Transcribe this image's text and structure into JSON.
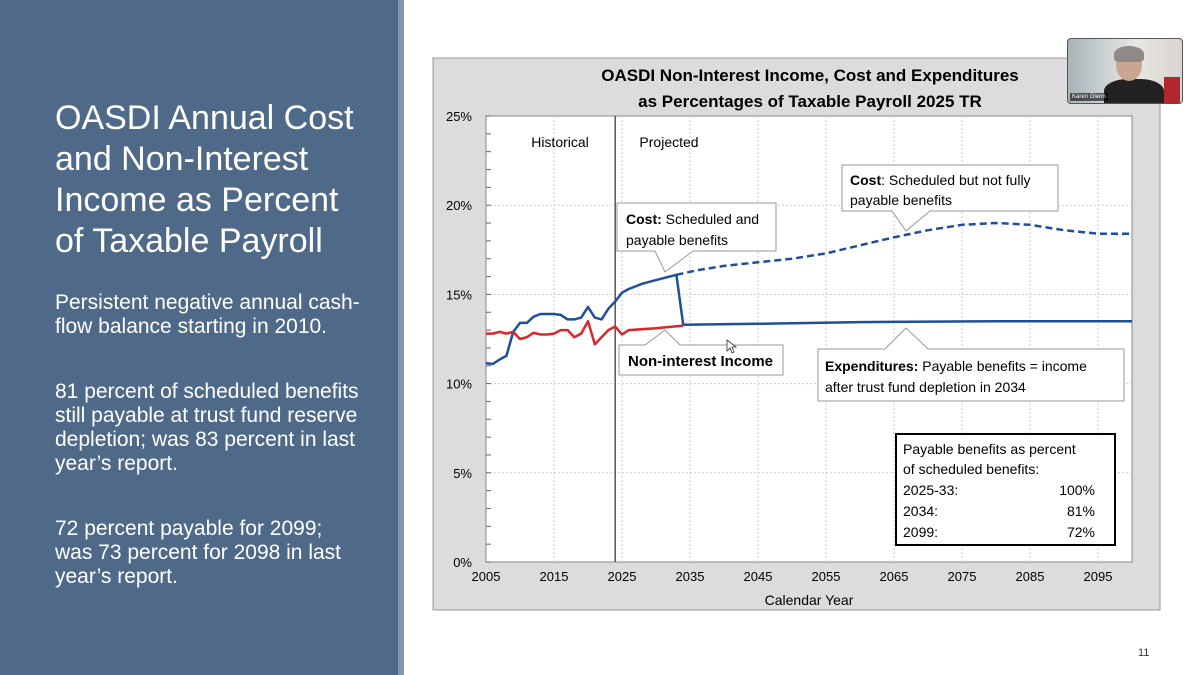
{
  "slide": {
    "title": "OASDI Annual Cost and Non-Interest Income as Percent of Taxable Payroll",
    "bullets": [
      "Persistent negative annual cash-flow balance starting in 2010.",
      "81 percent of scheduled benefits still payable at trust fund reserve depletion; was 83 percent in last year’s report.",
      "72 percent payable for 2099; was 73 percent for 2098 in last year’s report."
    ],
    "page_number": "11"
  },
  "video": {
    "participant_name": "Karen Glenn"
  },
  "colors": {
    "panel": "#4f6a89",
    "cost": "#1f4e9a",
    "income": "#d9262b"
  },
  "chart_data": {
    "type": "line",
    "title": [
      "OASDI Non-Interest Income, Cost and Expenditures",
      "as Percentages of Taxable Payroll 2025 TR"
    ],
    "xlabel": "Calendar Year",
    "ylabel": "",
    "xlim": [
      2005,
      2100
    ],
    "ylim": [
      0,
      25
    ],
    "xticks": [
      2005,
      2015,
      2025,
      2035,
      2045,
      2055,
      2065,
      2075,
      2085,
      2095
    ],
    "yticks": [
      0,
      5,
      10,
      15,
      20,
      25
    ],
    "ytick_labels": [
      "0%",
      "5%",
      "10%",
      "15%",
      "20%",
      "25%"
    ],
    "grid": true,
    "divider_year": 2024,
    "region_labels": [
      "Historical",
      "Projected"
    ],
    "series": [
      {
        "name": "Cost: Scheduled and payable benefits",
        "style": "solid",
        "color": "#1f4e9a",
        "x": [
          2005,
          2006,
          2007,
          2008,
          2009,
          2010,
          2011,
          2012,
          2013,
          2014,
          2015,
          2016,
          2017,
          2018,
          2019,
          2020,
          2021,
          2022,
          2023,
          2024,
          2025,
          2026,
          2028,
          2030,
          2032,
          2033,
          2034
        ],
        "y": [
          11.15,
          11.1,
          11.35,
          11.55,
          12.9,
          13.4,
          13.4,
          13.75,
          13.9,
          13.9,
          13.9,
          13.85,
          13.6,
          13.6,
          13.7,
          14.3,
          13.7,
          13.6,
          14.2,
          14.6,
          15.1,
          15.3,
          15.6,
          15.8,
          16.0,
          16.1,
          13.3
        ]
      },
      {
        "name": "Cost: Scheduled but not fully payable benefits",
        "style": "dashed",
        "color": "#1f4e9a",
        "x": [
          2033,
          2036,
          2040,
          2045,
          2050,
          2055,
          2060,
          2065,
          2070,
          2075,
          2080,
          2085,
          2090,
          2095,
          2100
        ],
        "y": [
          16.1,
          16.35,
          16.6,
          16.8,
          17.0,
          17.3,
          17.75,
          18.2,
          18.6,
          18.9,
          19.0,
          18.9,
          18.6,
          18.4,
          18.4
        ]
      },
      {
        "name": "Non-interest Income",
        "style": "solid",
        "color": "#d9262b",
        "x": [
          2005,
          2006,
          2007,
          2008,
          2009,
          2010,
          2011,
          2012,
          2013,
          2014,
          2015,
          2016,
          2017,
          2018,
          2019,
          2020,
          2021,
          2022,
          2023,
          2024,
          2025,
          2026,
          2030,
          2034
        ],
        "y": [
          12.8,
          12.8,
          12.9,
          12.8,
          12.9,
          12.5,
          12.6,
          12.85,
          12.75,
          12.75,
          12.8,
          13.0,
          13.0,
          12.6,
          12.8,
          13.5,
          12.2,
          12.6,
          13.0,
          13.2,
          12.75,
          13.0,
          13.1,
          13.25
        ]
      },
      {
        "name": "Expenditures: Payable benefits = income after trust fund depletion in 2034",
        "style": "solid",
        "color": "#1f4e9a",
        "x": [
          2034,
          2045,
          2060,
          2080,
          2100
        ],
        "y": [
          13.3,
          13.35,
          13.45,
          13.5,
          13.5
        ]
      }
    ],
    "annotations": {
      "cost_payable": {
        "bold": "Cost:",
        "text": " Scheduled and",
        "line2": "payable benefits"
      },
      "cost_unpayable": {
        "bold": "Cost",
        "text": ": Scheduled but not fully",
        "line2": "payable benefits"
      },
      "income": {
        "bold": "Non-interest Income"
      },
      "expenditures": {
        "bold": "Expenditures:",
        "text": " Payable benefits = income",
        "line2": "after trust fund depletion in 2034"
      },
      "payable_table": {
        "heading": [
          "Payable benefits as percent",
          "of scheduled benefits:"
        ],
        "rows": [
          [
            "2025-33:",
            "100%"
          ],
          [
            "2034:",
            "81%"
          ],
          [
            "2099:",
            "72%"
          ]
        ]
      }
    }
  }
}
